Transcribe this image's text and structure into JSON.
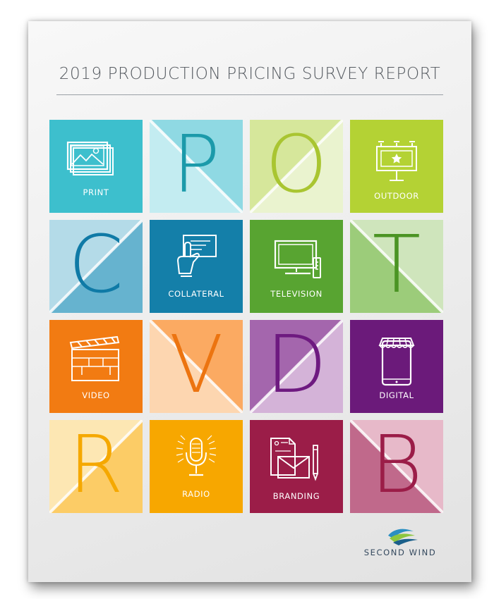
{
  "title": "2019 PRODUCTION PRICING SURVEY REPORT",
  "brand": "SECOND WIND",
  "tiles": [
    {
      "kind": "icon",
      "label": "PRINT",
      "icon": "picture-icon",
      "colors": [
        "#3dbfcd",
        "#3dbfcd"
      ]
    },
    {
      "kind": "letter",
      "letter": "P",
      "colors": [
        "#8fd9e3",
        "#c3ecf1"
      ],
      "diag": "tl-br",
      "letter_color": "#1b9aaa"
    },
    {
      "kind": "letter",
      "letter": "O",
      "colors": [
        "#d6e79b",
        "#eaf3cf"
      ],
      "diag": "bl-tr",
      "letter_color": "#a9c531"
    },
    {
      "kind": "icon",
      "label": "OUTDOOR",
      "icon": "billboard-icon",
      "colors": [
        "#b4d234",
        "#b4d234"
      ]
    },
    {
      "kind": "letter",
      "letter": "C",
      "colors": [
        "#b4dbe8",
        "#66b3cf"
      ],
      "diag": "bl-tr",
      "letter_color": "#0f7aa6"
    },
    {
      "kind": "icon",
      "label": "COLLATERAL",
      "icon": "hand-card-icon",
      "colors": [
        "#147fa9",
        "#147fa9"
      ]
    },
    {
      "kind": "icon",
      "label": "TELEVISION",
      "icon": "tv-icon",
      "colors": [
        "#58a431",
        "#58a431"
      ]
    },
    {
      "kind": "letter",
      "letter": "T",
      "colors": [
        "#cfe5bc",
        "#9ccc7a"
      ],
      "diag": "tl-br",
      "letter_color": "#4b9424"
    },
    {
      "kind": "icon",
      "label": "VIDEO",
      "icon": "clapperboard-icon",
      "colors": [
        "#f27b12",
        "#f27b12"
      ]
    },
    {
      "kind": "letter",
      "letter": "V",
      "colors": [
        "#fbaa62",
        "#fdd6b0"
      ],
      "diag": "tl-br",
      "letter_color": "#ec7410"
    },
    {
      "kind": "letter",
      "letter": "D",
      "colors": [
        "#a466ad",
        "#d4b3d8"
      ],
      "diag": "bl-tr",
      "letter_color": "#6e1a80"
    },
    {
      "kind": "icon",
      "label": "DIGITAL",
      "icon": "mobile-store-icon",
      "colors": [
        "#6b1a7a",
        "#6b1a7a"
      ]
    },
    {
      "kind": "letter",
      "letter": "R",
      "colors": [
        "#fde7b3",
        "#fccc66"
      ],
      "diag": "bl-tr",
      "letter_color": "#f5a800"
    },
    {
      "kind": "icon",
      "label": "RADIO",
      "icon": "microphone-icon",
      "colors": [
        "#f7a700",
        "#f7a700"
      ]
    },
    {
      "kind": "icon",
      "label": "BRANDING",
      "icon": "stationery-icon",
      "colors": [
        "#9b1d48",
        "#9b1d48"
      ]
    },
    {
      "kind": "letter",
      "letter": "B",
      "colors": [
        "#e7b9c9",
        "#c0698b"
      ],
      "diag": "tl-br",
      "letter_color": "#9b1d48"
    }
  ]
}
